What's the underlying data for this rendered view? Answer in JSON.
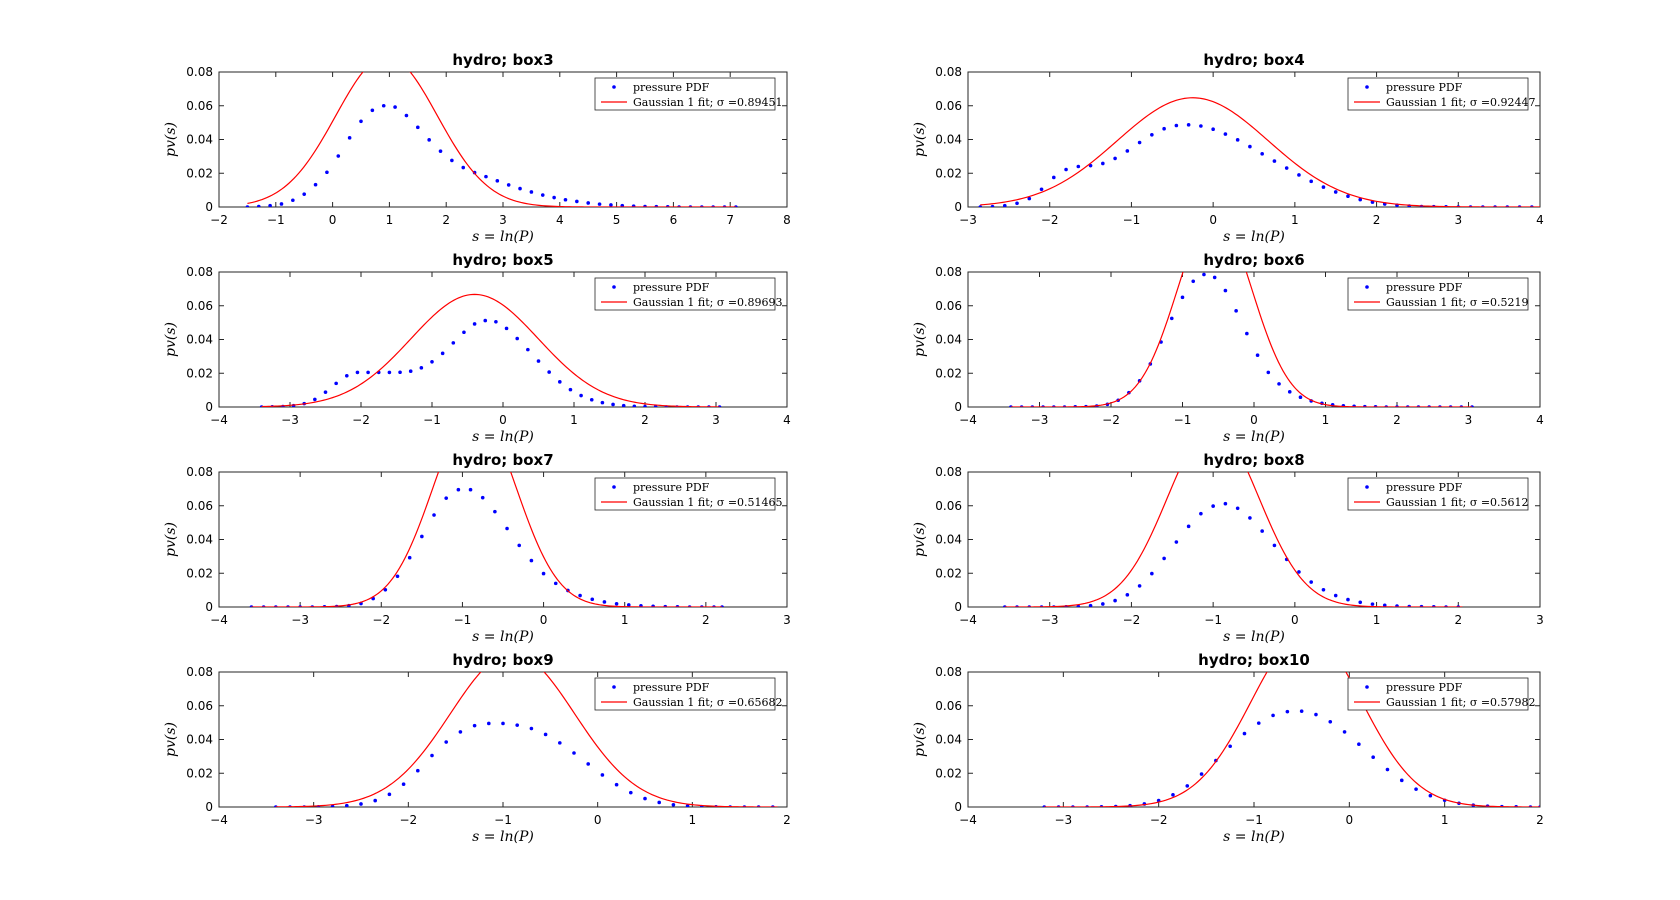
{
  "chart_data": [
    {
      "type": "line",
      "title": "hydro; box3",
      "xlabel": "s = ln(P)",
      "ylabel": "pv(s)",
      "xlim": [
        -2,
        8
      ],
      "ylim": [
        0,
        0.08
      ],
      "xticks": [
        "-2",
        "-1",
        "0",
        "1",
        "2",
        "3",
        "4",
        "5",
        "6",
        "7",
        "8"
      ],
      "yticks": [
        "0",
        "0.02",
        "0.04",
        "0.06",
        "0.08"
      ],
      "legend_position": "top-right",
      "series": [
        {
          "name": "pressure PDF",
          "style": "dots",
          "color": "#0000ff",
          "x": [
            -1.5,
            -1.3,
            -1.1,
            -0.9,
            -0.7,
            -0.5,
            -0.3,
            -0.1,
            0.1,
            0.3,
            0.5,
            0.7,
            0.9,
            1.1,
            1.3,
            1.5,
            1.7,
            1.9,
            2.1,
            2.3,
            2.5,
            2.7,
            2.9,
            3.1,
            3.3,
            3.5,
            3.7,
            3.9,
            4.1,
            4.3,
            4.5,
            4.7,
            4.9,
            5.1,
            5.3,
            5.5,
            5.7,
            5.9,
            6.1,
            6.3,
            6.5,
            6.7,
            6.9,
            7.1
          ],
          "y": [
            0,
            0.0003,
            0.0008,
            0.0018,
            0.004,
            0.0076,
            0.0132,
            0.0206,
            0.0302,
            0.041,
            0.0508,
            0.0573,
            0.06,
            0.0592,
            0.0542,
            0.0472,
            0.0398,
            0.0331,
            0.0276,
            0.0234,
            0.0204,
            0.018,
            0.0155,
            0.0131,
            0.0109,
            0.0089,
            0.0071,
            0.0056,
            0.0043,
            0.0033,
            0.0024,
            0.0017,
            0.0012,
            0.0008,
            0.0005,
            0.0003,
            0.0002,
            0.0001,
            0,
            0,
            0,
            0,
            0,
            0
          ]
        },
        {
          "name": "Gaussian 1 fit; σ =0.89451",
          "style": "line",
          "color": "#ff0000",
          "mu": 0.95,
          "sigma": 0.89451,
          "xrange": [
            -1.5,
            7.1
          ]
        }
      ]
    },
    {
      "type": "line",
      "title": "hydro; box4",
      "xlabel": "s = ln(P)",
      "ylabel": "pv(s)",
      "xlim": [
        -3,
        4
      ],
      "ylim": [
        0,
        0.08
      ],
      "xticks": [
        "-3",
        "-2",
        "-1",
        "0",
        "1",
        "2",
        "3",
        "4"
      ],
      "yticks": [
        "0",
        "0.02",
        "0.04",
        "0.06",
        "0.08"
      ],
      "legend_position": "top-right",
      "series": [
        {
          "name": "pressure PDF",
          "style": "dots",
          "color": "#0000ff",
          "x": [
            -2.85,
            -2.7,
            -2.55,
            -2.4,
            -2.25,
            -2.1,
            -1.95,
            -1.8,
            -1.65,
            -1.5,
            -1.35,
            -1.2,
            -1.05,
            -0.9,
            -0.75,
            -0.6,
            -0.45,
            -0.3,
            -0.15,
            0,
            0.15,
            0.3,
            0.45,
            0.6,
            0.75,
            0.9,
            1.05,
            1.2,
            1.35,
            1.5,
            1.65,
            1.8,
            1.95,
            2.1,
            2.25,
            2.4,
            2.55,
            2.7,
            2.85,
            3,
            3.15,
            3.3,
            3.45,
            3.6,
            3.75,
            3.9
          ],
          "y": [
            0,
            0.0002,
            0.0008,
            0.0022,
            0.005,
            0.0105,
            0.0175,
            0.0222,
            0.024,
            0.0245,
            0.0258,
            0.0288,
            0.0332,
            0.0382,
            0.0428,
            0.0464,
            0.0483,
            0.0487,
            0.048,
            0.0461,
            0.0432,
            0.0398,
            0.0358,
            0.0315,
            0.0272,
            0.0231,
            0.019,
            0.0152,
            0.0118,
            0.0089,
            0.0064,
            0.0044,
            0.0029,
            0.0018,
            0.0011,
            0.0006,
            0.0003,
            0.0002,
            0.0001,
            0,
            0,
            0,
            0,
            0,
            0,
            0
          ]
        },
        {
          "name": "Gaussian 1 fit; σ =0.92447",
          "style": "line",
          "color": "#ff0000",
          "mu": -0.25,
          "sigma": 0.92447,
          "xrange": [
            -2.85,
            4
          ]
        }
      ]
    },
    {
      "type": "line",
      "title": "hydro; box5",
      "xlabel": "s = ln(P)",
      "ylabel": "pv(s)",
      "xlim": [
        -4,
        4
      ],
      "ylim": [
        0,
        0.08
      ],
      "xticks": [
        "-4",
        "-3",
        "-2",
        "-1",
        "0",
        "1",
        "2",
        "3",
        "4"
      ],
      "yticks": [
        "0",
        "0.02",
        "0.04",
        "0.06",
        "0.08"
      ],
      "legend_position": "top-right",
      "series": [
        {
          "name": "pressure PDF",
          "style": "dots",
          "color": "#0000ff",
          "x": [
            -3.4,
            -3.25,
            -3.1,
            -2.95,
            -2.8,
            -2.65,
            -2.5,
            -2.35,
            -2.2,
            -2.05,
            -1.9,
            -1.75,
            -1.6,
            -1.45,
            -1.3,
            -1.15,
            -1,
            -0.85,
            -0.7,
            -0.55,
            -0.4,
            -0.25,
            -0.1,
            0.05,
            0.2,
            0.35,
            0.5,
            0.65,
            0.8,
            0.95,
            1.1,
            1.25,
            1.4,
            1.55,
            1.7,
            1.85,
            2,
            2.15,
            2.3,
            2.45,
            2.6,
            2.75,
            2.9,
            3.05
          ],
          "y": [
            0,
            0.0001,
            0.0003,
            0.0008,
            0.002,
            0.0045,
            0.0088,
            0.014,
            0.0185,
            0.0205,
            0.0205,
            0.0205,
            0.0205,
            0.0206,
            0.0212,
            0.0232,
            0.0268,
            0.0318,
            0.038,
            0.0443,
            0.0492,
            0.0512,
            0.0505,
            0.0466,
            0.0406,
            0.034,
            0.0272,
            0.0207,
            0.0149,
            0.0103,
            0.0068,
            0.0043,
            0.0026,
            0.0015,
            0.0008,
            0.0004,
            0.0002,
            0.0001,
            0,
            0,
            0,
            0,
            0,
            0
          ]
        },
        {
          "name": "Gaussian 1 fit; σ =0.89693",
          "style": "line",
          "color": "#ff0000",
          "mu": -0.4,
          "sigma": 0.89693,
          "xrange": [
            -3.4,
            3.05
          ]
        }
      ]
    },
    {
      "type": "line",
      "title": "hydro; box6",
      "xlabel": "s = ln(P)",
      "ylabel": "pv(s)",
      "xlim": [
        -4,
        4
      ],
      "ylim": [
        0,
        0.08
      ],
      "xticks": [
        "-4",
        "-3",
        "-2",
        "-1",
        "0",
        "1",
        "2",
        "3",
        "4"
      ],
      "yticks": [
        "0",
        "0.02",
        "0.04",
        "0.06",
        "0.08"
      ],
      "legend_position": "top-right",
      "series": [
        {
          "name": "pressure PDF",
          "style": "dots",
          "color": "#0000ff",
          "x": [
            -3.4,
            -3.25,
            -3.1,
            -2.95,
            -2.8,
            -2.65,
            -2.5,
            -2.35,
            -2.2,
            -2.05,
            -1.9,
            -1.75,
            -1.6,
            -1.45,
            -1.3,
            -1.15,
            -1,
            -0.85,
            -0.7,
            -0.55,
            -0.4,
            -0.25,
            -0.1,
            0.05,
            0.2,
            0.35,
            0.5,
            0.65,
            0.8,
            0.95,
            1.1,
            1.25,
            1.4,
            1.55,
            1.7,
            1.85,
            2,
            2.15,
            2.3,
            2.45,
            2.6,
            2.75,
            2.9,
            3.05
          ],
          "y": [
            0,
            0,
            0,
            0,
            0,
            0,
            0.0001,
            0.0002,
            0.0006,
            0.0016,
            0.004,
            0.0085,
            0.0155,
            0.0255,
            0.0385,
            0.0525,
            0.065,
            0.0745,
            0.0785,
            0.0768,
            0.069,
            0.057,
            0.0435,
            0.0307,
            0.0205,
            0.0137,
            0.009,
            0.0058,
            0.0036,
            0.0022,
            0.0013,
            0.0007,
            0.0004,
            0.0002,
            0.0001,
            0,
            0,
            0,
            0,
            0,
            0,
            0,
            0,
            0
          ]
        },
        {
          "name": "Gaussian 1 fit; σ =0.5219",
          "style": "line",
          "color": "#ff0000",
          "mu": -0.55,
          "sigma": 0.5219,
          "xrange": [
            -3.4,
            3.05
          ]
        }
      ]
    },
    {
      "type": "line",
      "title": "hydro; box7",
      "xlabel": "s = ln(P)",
      "ylabel": "pv(s)",
      "xlim": [
        -4,
        3
      ],
      "ylim": [
        0,
        0.08
      ],
      "xticks": [
        "-4",
        "-3",
        "-2",
        "-1",
        "0",
        "1",
        "2",
        "3"
      ],
      "yticks": [
        "0",
        "0.02",
        "0.04",
        "0.06",
        "0.08"
      ],
      "legend_position": "top-right",
      "series": [
        {
          "name": "pressure PDF",
          "style": "dots",
          "color": "#0000ff",
          "x": [
            -3.6,
            -3.45,
            -3.3,
            -3.15,
            -3,
            -2.85,
            -2.7,
            -2.55,
            -2.4,
            -2.25,
            -2.1,
            -1.95,
            -1.8,
            -1.65,
            -1.5,
            -1.35,
            -1.2,
            -1.05,
            -0.9,
            -0.75,
            -0.6,
            -0.45,
            -0.3,
            -0.15,
            0,
            0.15,
            0.3,
            0.45,
            0.6,
            0.75,
            0.9,
            1.05,
            1.2,
            1.35,
            1.5,
            1.65,
            1.8,
            1.95,
            2.1,
            2.2
          ],
          "y": [
            0,
            0,
            0,
            0,
            0,
            0,
            0.0001,
            0.0003,
            0.0008,
            0.0021,
            0.005,
            0.0102,
            0.0182,
            0.0292,
            0.0418,
            0.0545,
            0.0645,
            0.0695,
            0.0695,
            0.0648,
            0.0565,
            0.0465,
            0.0365,
            0.0275,
            0.0198,
            0.014,
            0.0098,
            0.0068,
            0.0046,
            0.003,
            0.0019,
            0.0012,
            0.0007,
            0.0004,
            0.0002,
            0.0001,
            0,
            0,
            0,
            0
          ]
        },
        {
          "name": "Gaussian 1 fit; σ =0.51465",
          "style": "line",
          "color": "#ff0000",
          "mu": -0.85,
          "sigma": 0.51465,
          "xrange": [
            -3.6,
            2.2
          ]
        }
      ]
    },
    {
      "type": "line",
      "title": "hydro; box8",
      "xlabel": "s = ln(P)",
      "ylabel": "pv(s)",
      "xlim": [
        -4,
        3
      ],
      "ylim": [
        0,
        0.08
      ],
      "xticks": [
        "-4",
        "-3",
        "-2",
        "-1",
        "0",
        "1",
        "2",
        "3"
      ],
      "yticks": [
        "0",
        "0.02",
        "0.04",
        "0.06",
        "0.08"
      ],
      "legend_position": "top-right",
      "series": [
        {
          "name": "pressure PDF",
          "style": "dots",
          "color": "#0000ff",
          "x": [
            -3.55,
            -3.4,
            -3.25,
            -3.1,
            -2.95,
            -2.8,
            -2.65,
            -2.5,
            -2.35,
            -2.2,
            -2.05,
            -1.9,
            -1.75,
            -1.6,
            -1.45,
            -1.3,
            -1.15,
            -1,
            -0.85,
            -0.7,
            -0.55,
            -0.4,
            -0.25,
            -0.1,
            0.05,
            0.2,
            0.35,
            0.5,
            0.65,
            0.8,
            0.95,
            1.1,
            1.25,
            1.4,
            1.55,
            1.7,
            1.85,
            2
          ],
          "y": [
            0,
            0,
            0,
            0,
            0,
            0.0001,
            0.0003,
            0.0008,
            0.0018,
            0.0038,
            0.0072,
            0.0125,
            0.0198,
            0.0288,
            0.0385,
            0.0478,
            0.0553,
            0.0598,
            0.0612,
            0.0585,
            0.0528,
            0.045,
            0.0365,
            0.0282,
            0.0208,
            0.0148,
            0.0102,
            0.0068,
            0.0044,
            0.0028,
            0.0017,
            0.001,
            0.0006,
            0.0003,
            0.0002,
            0.0001,
            0,
            0
          ]
        },
        {
          "name": "Gaussian 1 fit; σ =0.5612",
          "style": "line",
          "color": "#ff0000",
          "mu": -1.0,
          "sigma": 0.5612,
          "xrange": [
            -3.55,
            2.05
          ]
        }
      ]
    },
    {
      "type": "line",
      "title": "hydro; box9",
      "xlabel": "s = ln(P)",
      "ylabel": "pv(s)",
      "xlim": [
        -4,
        2
      ],
      "ylim": [
        0,
        0.08
      ],
      "xticks": [
        "-4",
        "-3",
        "-2",
        "-1",
        "0",
        "1",
        "2"
      ],
      "yticks": [
        "0",
        "0.02",
        "0.04",
        "0.06",
        "0.08"
      ],
      "legend_position": "top-right",
      "series": [
        {
          "name": "pressure PDF",
          "style": "dots",
          "color": "#0000ff",
          "x": [
            -3.4,
            -3.25,
            -3.1,
            -2.95,
            -2.8,
            -2.65,
            -2.5,
            -2.35,
            -2.2,
            -2.05,
            -1.9,
            -1.75,
            -1.6,
            -1.45,
            -1.3,
            -1.15,
            -1,
            -0.85,
            -0.7,
            -0.55,
            -0.4,
            -0.25,
            -0.1,
            0.05,
            0.2,
            0.35,
            0.5,
            0.65,
            0.8,
            0.95,
            1.1,
            1.25,
            1.4,
            1.55,
            1.7,
            1.85
          ],
          "y": [
            0,
            0,
            0,
            0.0001,
            0.0003,
            0.0008,
            0.0018,
            0.0038,
            0.0075,
            0.0135,
            0.0215,
            0.0305,
            0.0385,
            0.0445,
            0.0482,
            0.0495,
            0.0495,
            0.0485,
            0.0465,
            0.043,
            0.038,
            0.032,
            0.0255,
            0.019,
            0.0132,
            0.0085,
            0.005,
            0.0027,
            0.0013,
            0.0006,
            0.0002,
            0.0001,
            0,
            0,
            0,
            0
          ]
        },
        {
          "name": "Gaussian 1 fit; σ =0.65682",
          "style": "line",
          "color": "#ff0000",
          "mu": -0.9,
          "sigma": 0.65682,
          "xrange": [
            -3.4,
            1.9
          ]
        }
      ]
    },
    {
      "type": "line",
      "title": "hydro; box10",
      "xlabel": "s = ln(P)",
      "ylabel": "pv(s)",
      "xlim": [
        -4,
        2
      ],
      "ylim": [
        0,
        0.08
      ],
      "xticks": [
        "-4",
        "-3",
        "-2",
        "-1",
        "0",
        "1",
        "2"
      ],
      "yticks": [
        "0",
        "0.02",
        "0.04",
        "0.06",
        "0.08"
      ],
      "legend_position": "top-right",
      "series": [
        {
          "name": "pressure PDF",
          "style": "dots",
          "color": "#0000ff",
          "x": [
            -3.2,
            -3.05,
            -2.9,
            -2.75,
            -2.6,
            -2.45,
            -2.3,
            -2.15,
            -2,
            -1.85,
            -1.7,
            -1.55,
            -1.4,
            -1.25,
            -1.1,
            -0.95,
            -0.8,
            -0.65,
            -0.5,
            -0.35,
            -0.2,
            -0.05,
            0.1,
            0.25,
            0.4,
            0.55,
            0.7,
            0.85,
            1,
            1.15,
            1.3,
            1.45,
            1.6,
            1.75,
            1.9,
            2
          ],
          "y": [
            0,
            0,
            0,
            0,
            0.0001,
            0.0003,
            0.0008,
            0.0018,
            0.0038,
            0.0072,
            0.0125,
            0.0195,
            0.0275,
            0.036,
            0.0435,
            0.0497,
            0.0543,
            0.0565,
            0.0568,
            0.0548,
            0.0505,
            0.0445,
            0.0372,
            0.0295,
            0.0222,
            0.0158,
            0.0106,
            0.0067,
            0.004,
            0.0022,
            0.0011,
            0.0005,
            0.0002,
            0.0001,
            0,
            0
          ]
        },
        {
          "name": "Gaussian 1 fit; σ =0.57982",
          "style": "line",
          "color": "#ff0000",
          "mu": -0.45,
          "sigma": 0.57982,
          "xrange": [
            -3.2,
            2
          ]
        }
      ]
    }
  ]
}
